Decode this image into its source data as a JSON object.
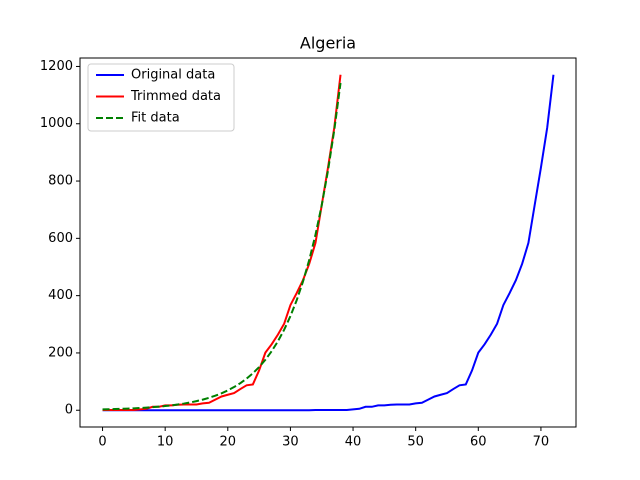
{
  "chart_data": {
    "type": "line",
    "title": "Algeria",
    "legend": "upper left",
    "xlim": [
      -3.6,
      75.6
    ],
    "xticks": [
      0,
      10,
      20,
      30,
      40,
      50,
      60,
      70
    ],
    "ylim": [
      -58.5,
      1229.5
    ],
    "yticks": [
      0,
      200,
      400,
      600,
      800,
      1000,
      1200
    ],
    "series": [
      {
        "name": "Original data",
        "color": "#0000ff",
        "linestyle": "solid",
        "x": [
          0,
          1,
          2,
          3,
          4,
          5,
          6,
          7,
          8,
          9,
          10,
          11,
          12,
          13,
          14,
          15,
          16,
          17,
          18,
          19,
          20,
          21,
          22,
          23,
          24,
          25,
          26,
          27,
          28,
          29,
          30,
          31,
          32,
          33,
          34,
          35,
          36,
          37,
          38,
          39,
          40,
          41,
          42,
          43,
          44,
          45,
          46,
          47,
          48,
          49,
          50,
          51,
          52,
          53,
          54,
          55,
          56,
          57,
          58,
          59,
          60,
          61,
          62,
          63,
          64,
          65,
          66,
          67,
          68,
          69,
          70,
          71,
          72
        ],
        "values": [
          0,
          0,
          0,
          0,
          0,
          0,
          0,
          0,
          0,
          0,
          0,
          0,
          0,
          0,
          0,
          0,
          0,
          0,
          0,
          0,
          0,
          0,
          0,
          0,
          0,
          0,
          0,
          0,
          0,
          0,
          0,
          0,
          0,
          0,
          1,
          1,
          1,
          1,
          1,
          1,
          3,
          5,
          12,
          12,
          17,
          17,
          19,
          20,
          20,
          20,
          24,
          26,
          37,
          48,
          54,
          60,
          74,
          87,
          90,
          139,
          201,
          230,
          264,
          302,
          367,
          409,
          454,
          511,
          584,
          716,
          847,
          986,
          1171
        ]
      },
      {
        "name": "Trimmed data",
        "color": "#ff0000",
        "linestyle": "solid",
        "x": [
          0,
          1,
          2,
          3,
          4,
          5,
          6,
          7,
          8,
          9,
          10,
          11,
          12,
          13,
          14,
          15,
          16,
          17,
          18,
          19,
          20,
          21,
          22,
          23,
          24,
          25,
          26,
          27,
          28,
          29,
          30,
          31,
          32,
          33,
          34,
          35,
          36,
          37,
          38
        ],
        "values": [
          1,
          1,
          1,
          1,
          1,
          1,
          3,
          5,
          12,
          12,
          17,
          17,
          19,
          20,
          20,
          20,
          24,
          26,
          37,
          48,
          54,
          60,
          74,
          87,
          90,
          139,
          201,
          230,
          264,
          302,
          367,
          409,
          454,
          511,
          584,
          716,
          847,
          986,
          1171
        ]
      },
      {
        "name": "Fit data",
        "color": "#008000",
        "linestyle": "dashed",
        "x": [
          0,
          1,
          2,
          3,
          4,
          5,
          6,
          7,
          8,
          9,
          10,
          11,
          12,
          13,
          14,
          15,
          16,
          17,
          18,
          19,
          20,
          21,
          22,
          23,
          24,
          25,
          26,
          27,
          28,
          29,
          30,
          31,
          32,
          33,
          34,
          35,
          36,
          37,
          38
        ],
        "values": [
          3.1,
          3.6,
          4.2,
          4.9,
          5.7,
          6.7,
          7.8,
          9.1,
          10.7,
          12.5,
          14.6,
          17.0,
          19.9,
          23.3,
          27.2,
          31.8,
          37.1,
          43.4,
          50.7,
          59.2,
          69.2,
          80.9,
          94.5,
          110.4,
          129.0,
          150.8,
          176.2,
          205.9,
          240.6,
          281.1,
          328.5,
          383.9,
          448.6,
          524.2,
          612.6,
          715.8,
          836.5,
          977.5,
          1142.3
        ]
      }
    ]
  }
}
